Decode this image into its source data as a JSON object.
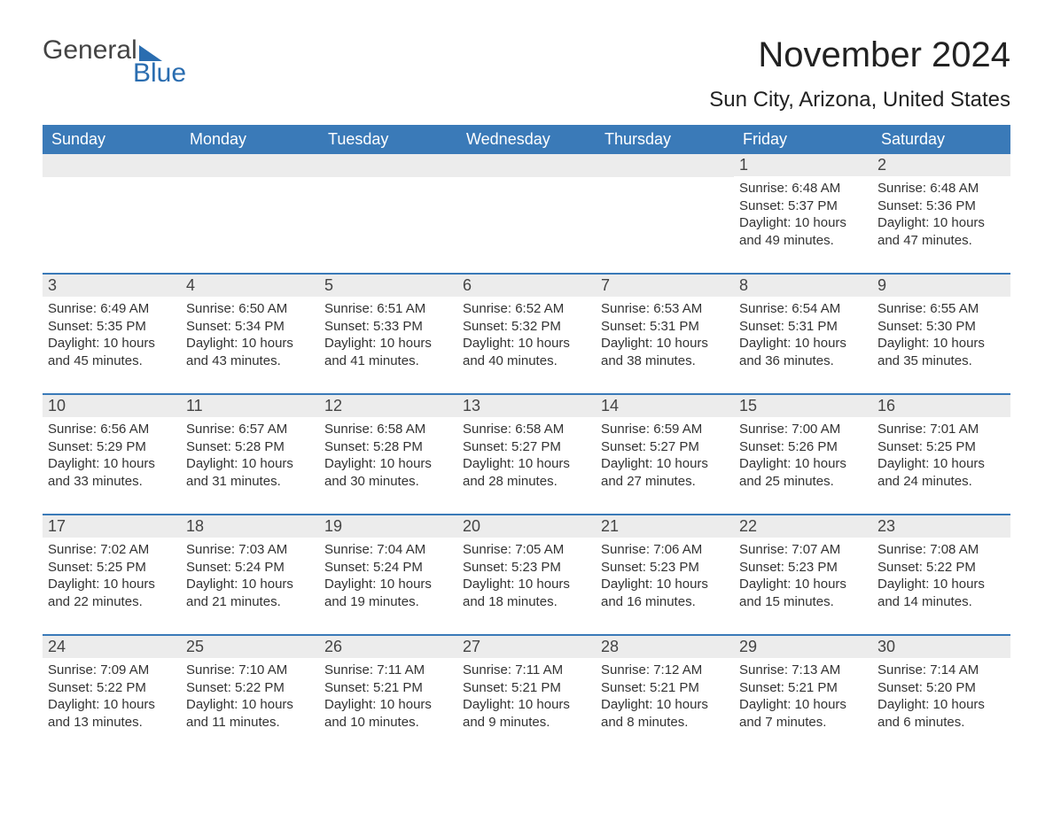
{
  "logo": {
    "word1": "General",
    "word2": "Blue"
  },
  "title": "November 2024",
  "location": "Sun City, Arizona, United States",
  "colors": {
    "header_bg": "#3a7ab8",
    "header_text": "#ffffff",
    "daynum_bg": "#ececec",
    "body_bg": "#ffffff",
    "text": "#333333",
    "logo_blue": "#2a6db0"
  },
  "fonts": {
    "title_size_pt": 30,
    "location_size_pt": 18,
    "header_size_pt": 14,
    "body_size_pt": 11
  },
  "day_names": [
    "Sunday",
    "Monday",
    "Tuesday",
    "Wednesday",
    "Thursday",
    "Friday",
    "Saturday"
  ],
  "weeks": [
    [
      {
        "empty": true
      },
      {
        "empty": true
      },
      {
        "empty": true
      },
      {
        "empty": true
      },
      {
        "empty": true
      },
      {
        "day": "1",
        "sunrise": "Sunrise: 6:48 AM",
        "sunset": "Sunset: 5:37 PM",
        "daylight": "Daylight: 10 hours and 49 minutes."
      },
      {
        "day": "2",
        "sunrise": "Sunrise: 6:48 AM",
        "sunset": "Sunset: 5:36 PM",
        "daylight": "Daylight: 10 hours and 47 minutes."
      }
    ],
    [
      {
        "day": "3",
        "sunrise": "Sunrise: 6:49 AM",
        "sunset": "Sunset: 5:35 PM",
        "daylight": "Daylight: 10 hours and 45 minutes."
      },
      {
        "day": "4",
        "sunrise": "Sunrise: 6:50 AM",
        "sunset": "Sunset: 5:34 PM",
        "daylight": "Daylight: 10 hours and 43 minutes."
      },
      {
        "day": "5",
        "sunrise": "Sunrise: 6:51 AM",
        "sunset": "Sunset: 5:33 PM",
        "daylight": "Daylight: 10 hours and 41 minutes."
      },
      {
        "day": "6",
        "sunrise": "Sunrise: 6:52 AM",
        "sunset": "Sunset: 5:32 PM",
        "daylight": "Daylight: 10 hours and 40 minutes."
      },
      {
        "day": "7",
        "sunrise": "Sunrise: 6:53 AM",
        "sunset": "Sunset: 5:31 PM",
        "daylight": "Daylight: 10 hours and 38 minutes."
      },
      {
        "day": "8",
        "sunrise": "Sunrise: 6:54 AM",
        "sunset": "Sunset: 5:31 PM",
        "daylight": "Daylight: 10 hours and 36 minutes."
      },
      {
        "day": "9",
        "sunrise": "Sunrise: 6:55 AM",
        "sunset": "Sunset: 5:30 PM",
        "daylight": "Daylight: 10 hours and 35 minutes."
      }
    ],
    [
      {
        "day": "10",
        "sunrise": "Sunrise: 6:56 AM",
        "sunset": "Sunset: 5:29 PM",
        "daylight": "Daylight: 10 hours and 33 minutes."
      },
      {
        "day": "11",
        "sunrise": "Sunrise: 6:57 AM",
        "sunset": "Sunset: 5:28 PM",
        "daylight": "Daylight: 10 hours and 31 minutes."
      },
      {
        "day": "12",
        "sunrise": "Sunrise: 6:58 AM",
        "sunset": "Sunset: 5:28 PM",
        "daylight": "Daylight: 10 hours and 30 minutes."
      },
      {
        "day": "13",
        "sunrise": "Sunrise: 6:58 AM",
        "sunset": "Sunset: 5:27 PM",
        "daylight": "Daylight: 10 hours and 28 minutes."
      },
      {
        "day": "14",
        "sunrise": "Sunrise: 6:59 AM",
        "sunset": "Sunset: 5:27 PM",
        "daylight": "Daylight: 10 hours and 27 minutes."
      },
      {
        "day": "15",
        "sunrise": "Sunrise: 7:00 AM",
        "sunset": "Sunset: 5:26 PM",
        "daylight": "Daylight: 10 hours and 25 minutes."
      },
      {
        "day": "16",
        "sunrise": "Sunrise: 7:01 AM",
        "sunset": "Sunset: 5:25 PM",
        "daylight": "Daylight: 10 hours and 24 minutes."
      }
    ],
    [
      {
        "day": "17",
        "sunrise": "Sunrise: 7:02 AM",
        "sunset": "Sunset: 5:25 PM",
        "daylight": "Daylight: 10 hours and 22 minutes."
      },
      {
        "day": "18",
        "sunrise": "Sunrise: 7:03 AM",
        "sunset": "Sunset: 5:24 PM",
        "daylight": "Daylight: 10 hours and 21 minutes."
      },
      {
        "day": "19",
        "sunrise": "Sunrise: 7:04 AM",
        "sunset": "Sunset: 5:24 PM",
        "daylight": "Daylight: 10 hours and 19 minutes."
      },
      {
        "day": "20",
        "sunrise": "Sunrise: 7:05 AM",
        "sunset": "Sunset: 5:23 PM",
        "daylight": "Daylight: 10 hours and 18 minutes."
      },
      {
        "day": "21",
        "sunrise": "Sunrise: 7:06 AM",
        "sunset": "Sunset: 5:23 PM",
        "daylight": "Daylight: 10 hours and 16 minutes."
      },
      {
        "day": "22",
        "sunrise": "Sunrise: 7:07 AM",
        "sunset": "Sunset: 5:23 PM",
        "daylight": "Daylight: 10 hours and 15 minutes."
      },
      {
        "day": "23",
        "sunrise": "Sunrise: 7:08 AM",
        "sunset": "Sunset: 5:22 PM",
        "daylight": "Daylight: 10 hours and 14 minutes."
      }
    ],
    [
      {
        "day": "24",
        "sunrise": "Sunrise: 7:09 AM",
        "sunset": "Sunset: 5:22 PM",
        "daylight": "Daylight: 10 hours and 13 minutes."
      },
      {
        "day": "25",
        "sunrise": "Sunrise: 7:10 AM",
        "sunset": "Sunset: 5:22 PM",
        "daylight": "Daylight: 10 hours and 11 minutes."
      },
      {
        "day": "26",
        "sunrise": "Sunrise: 7:11 AM",
        "sunset": "Sunset: 5:21 PM",
        "daylight": "Daylight: 10 hours and 10 minutes."
      },
      {
        "day": "27",
        "sunrise": "Sunrise: 7:11 AM",
        "sunset": "Sunset: 5:21 PM",
        "daylight": "Daylight: 10 hours and 9 minutes."
      },
      {
        "day": "28",
        "sunrise": "Sunrise: 7:12 AM",
        "sunset": "Sunset: 5:21 PM",
        "daylight": "Daylight: 10 hours and 8 minutes."
      },
      {
        "day": "29",
        "sunrise": "Sunrise: 7:13 AM",
        "sunset": "Sunset: 5:21 PM",
        "daylight": "Daylight: 10 hours and 7 minutes."
      },
      {
        "day": "30",
        "sunrise": "Sunrise: 7:14 AM",
        "sunset": "Sunset: 5:20 PM",
        "daylight": "Daylight: 10 hours and 6 minutes."
      }
    ]
  ]
}
